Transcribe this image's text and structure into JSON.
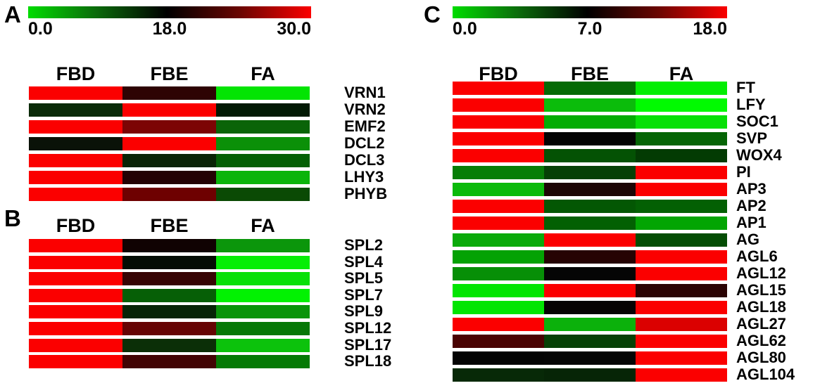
{
  "figure": {
    "background": "#ffffff",
    "colormap_low_color": "#00dc00",
    "colormap_mid_color": "#000000",
    "colormap_high_color": "#fb0000"
  },
  "chart_data": [
    {
      "type": "heatmap",
      "panel_label": "A",
      "colormap": "green-black-red",
      "scale_ticks": [
        "0.0",
        "18.0",
        "30.0"
      ],
      "scale_range": [
        0,
        30
      ],
      "scale_mid": 18,
      "columns": [
        "FBD",
        "FBE",
        "FA"
      ],
      "rows": [
        {
          "gene": "VRN1",
          "colors": [
            "#fb0000",
            "#2e0303",
            "#03e403"
          ],
          "values_approx": [
            30,
            20,
            0.5
          ]
        },
        {
          "gene": "VRN2",
          "colors": [
            "#0a2a08",
            "#fb0000",
            "#021a04"
          ],
          "values_approx": [
            15,
            30,
            16
          ]
        },
        {
          "gene": "EMF2",
          "colors": [
            "#fb0000",
            "#7c0404",
            "#0a6408"
          ],
          "values_approx": [
            30,
            24,
            10
          ]
        },
        {
          "gene": "DCL2",
          "colors": [
            "#0a1208",
            "#fb0000",
            "#0b9008"
          ],
          "values_approx": [
            17,
            30,
            7
          ]
        },
        {
          "gene": "DCL3",
          "colors": [
            "#fb0000",
            "#0a2306",
            "#056005"
          ],
          "values_approx": [
            30,
            15,
            10.5
          ]
        },
        {
          "gene": "LHY3",
          "colors": [
            "#fb0000",
            "#240204",
            "#0bb40b"
          ],
          "values_approx": [
            30,
            20,
            4
          ]
        },
        {
          "gene": "PHYB",
          "colors": [
            "#fb0000",
            "#6e0101",
            "#0a4a04"
          ],
          "values_approx": [
            30,
            23,
            12
          ]
        }
      ]
    },
    {
      "type": "heatmap",
      "panel_label": "B",
      "colormap": "green-black-red",
      "columns": [
        "FBD",
        "FBE",
        "FA"
      ],
      "rows": [
        {
          "gene": "SPL2",
          "colors": [
            "#fb0000",
            "#100202",
            "#0b960b"
          ],
          "values_approx": [
            30,
            19,
            6.5
          ]
        },
        {
          "gene": "SPL4",
          "colors": [
            "#fb0000",
            "#040c04",
            "#06ee06"
          ],
          "values_approx": [
            30,
            17.5,
            0.5
          ]
        },
        {
          "gene": "SPL5",
          "colors": [
            "#fb0000",
            "#370404",
            "#08e008"
          ],
          "values_approx": [
            30,
            21,
            1
          ]
        },
        {
          "gene": "SPL7",
          "colors": [
            "#fb0000",
            "#065f06",
            "#02f202"
          ],
          "values_approx": [
            30,
            10.5,
            0
          ]
        },
        {
          "gene": "SPL9",
          "colors": [
            "#fb0000",
            "#072407",
            "#0a940a"
          ],
          "values_approx": [
            30,
            15.5,
            6.5
          ]
        },
        {
          "gene": "SPL12",
          "colors": [
            "#fb0000",
            "#660404",
            "#077807"
          ],
          "values_approx": [
            30,
            23,
            9
          ]
        },
        {
          "gene": "SPL17",
          "colors": [
            "#fb0000",
            "#0b2f07",
            "#0cc20c"
          ],
          "values_approx": [
            30,
            14.5,
            3
          ]
        },
        {
          "gene": "SPL18",
          "colors": [
            "#fb0000",
            "#420404",
            "#057a05"
          ],
          "values_approx": [
            30,
            21,
            8.5
          ]
        }
      ]
    },
    {
      "type": "heatmap",
      "panel_label": "C",
      "colormap": "green-black-red",
      "scale_ticks": [
        "0.0",
        "7.0",
        "18.0"
      ],
      "scale_range": [
        0,
        18
      ],
      "scale_mid": 7,
      "columns": [
        "FBD",
        "FBE",
        "FA"
      ],
      "rows": [
        {
          "gene": "FT",
          "colors": [
            "#fb0000",
            "#056a05",
            "#02ee02"
          ],
          "values_approx": [
            18,
            4,
            0.2
          ]
        },
        {
          "gene": "LFY",
          "colors": [
            "#fb0000",
            "#0bbc0b",
            "#01fa01"
          ],
          "values_approx": [
            18,
            1.5,
            0
          ]
        },
        {
          "gene": "SOC1",
          "colors": [
            "#fb0000",
            "#04ac04",
            "#07e007"
          ],
          "values_approx": [
            18,
            2,
            0.5
          ]
        },
        {
          "gene": "SVP",
          "colors": [
            "#fb0000",
            "#040404",
            "#056505"
          ],
          "values_approx": [
            18,
            7,
            4
          ]
        },
        {
          "gene": "WOX4",
          "colors": [
            "#fb0000",
            "#045204",
            "#033b03"
          ],
          "values_approx": [
            18,
            4.5,
            5.5
          ]
        },
        {
          "gene": "PI",
          "colors": [
            "#077e07",
            "#064106",
            "#fb0000"
          ],
          "values_approx": [
            3.5,
            5,
            18
          ]
        },
        {
          "gene": "AP3",
          "colors": [
            "#0bba0b",
            "#1d0505",
            "#fb0000"
          ],
          "values_approx": [
            1.5,
            8,
            18
          ]
        },
        {
          "gene": "AP2",
          "colors": [
            "#fb0000",
            "#035703",
            "#036003"
          ],
          "values_approx": [
            18,
            4.5,
            4
          ]
        },
        {
          "gene": "AP1",
          "colors": [
            "#fb0000",
            "#036003",
            "#03a503"
          ],
          "values_approx": [
            18,
            4,
            2
          ]
        },
        {
          "gene": "AG",
          "colors": [
            "#0baa0b",
            "#fb0000",
            "#044d04"
          ],
          "values_approx": [
            2,
            18,
            5
          ]
        },
        {
          "gene": "AGL6",
          "colors": [
            "#04a204",
            "#260303",
            "#fb0000"
          ],
          "values_approx": [
            2.5,
            8.5,
            18
          ]
        },
        {
          "gene": "AGL12",
          "colors": [
            "#078f07",
            "#050505",
            "#fb0000"
          ],
          "values_approx": [
            3,
            7,
            18
          ]
        },
        {
          "gene": "AGL15",
          "colors": [
            "#02e502",
            "#fb0000",
            "#2b0303"
          ],
          "values_approx": [
            0.5,
            18,
            9
          ]
        },
        {
          "gene": "AGL18",
          "colors": [
            "#02e502",
            "#070303",
            "#fb0000"
          ],
          "values_approx": [
            0.5,
            7.5,
            18
          ]
        },
        {
          "gene": "AGL27",
          "colors": [
            "#fb0000",
            "#0bb10b",
            "#db0101"
          ],
          "values_approx": [
            18,
            2,
            16.5
          ]
        },
        {
          "gene": "AGL62",
          "colors": [
            "#4a0303",
            "#064106",
            "#fb0000"
          ],
          "values_approx": [
            10,
            5,
            18
          ]
        },
        {
          "gene": "AGL80",
          "colors": [
            "#040404",
            "#050505",
            "#fb0000"
          ],
          "values_approx": [
            7,
            7,
            18
          ]
        },
        {
          "gene": "AGL104",
          "colors": [
            "#072907",
            "#062506",
            "#fb0000"
          ],
          "values_approx": [
            6,
            6,
            18
          ]
        }
      ]
    }
  ]
}
